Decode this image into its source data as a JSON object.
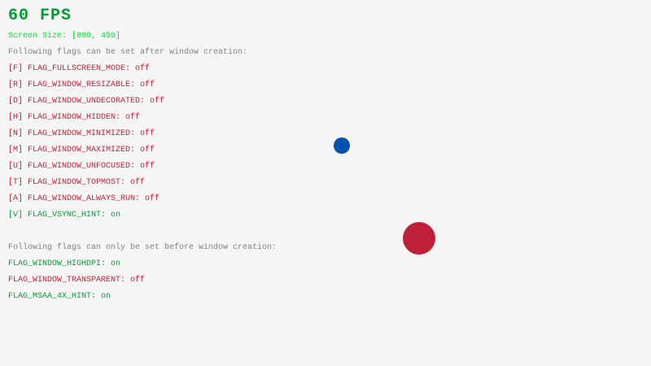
{
  "fps": "60 FPS",
  "screen_size": "Screen Size: [800, 450]",
  "after_heading": "Following flags can be set after window creation:",
  "after_flags": [
    {
      "text": "[F] FLAG_FULLSCREEN_MODE: off",
      "on": false
    },
    {
      "text": "[R] FLAG_WINDOW_RESIZABLE: off",
      "on": false
    },
    {
      "text": "[D] FLAG_WINDOW_UNDECORATED: off",
      "on": false
    },
    {
      "text": "[H] FLAG_WINDOW_HIDDEN: off",
      "on": false
    },
    {
      "text": "[N] FLAG_WINDOW_MINIMIZED: off",
      "on": false
    },
    {
      "text": "[M] FLAG_WINDOW_MAXIMIZED: off",
      "on": false
    },
    {
      "text": "[U] FLAG_WINDOW_UNFOCUSED: off",
      "on": false
    },
    {
      "text": "[T] FLAG_WINDOW_TOPMOST: off",
      "on": false
    },
    {
      "text": "[A] FLAG_WINDOW_ALWAYS_RUN: off",
      "on": false
    },
    {
      "text": "[V] FLAG_VSYNC_HINT: on",
      "on": true
    }
  ],
  "before_heading": "Following flags can only be set before window creation:",
  "before_flags": [
    {
      "text": "FLAG_WINDOW_HIGHDPI: on",
      "on": true
    },
    {
      "text": "FLAG_WINDOW_TRANSPARENT: off",
      "on": false
    },
    {
      "text": "FLAG_MSAA_4X_HINT: on",
      "on": true
    }
  ],
  "colors": {
    "background": "#F5F5F5",
    "fps": "#009E2F",
    "screen_size": "#00E430",
    "heading": "#828282",
    "flag_on": "#009E2F",
    "flag_off": "#BE2137",
    "ball_small": "#0052AC",
    "ball_large": "#BE2137"
  }
}
